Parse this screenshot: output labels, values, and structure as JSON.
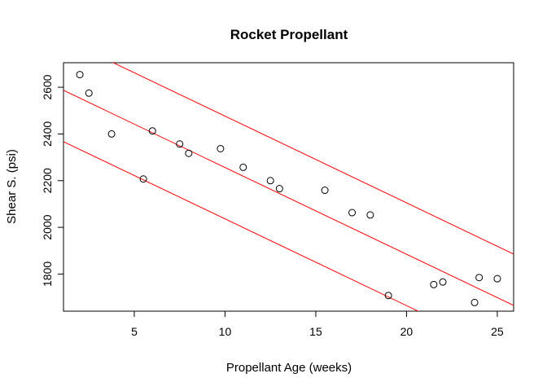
{
  "chart_data": {
    "type": "scatter",
    "title": "Rocket Propellant",
    "xlabel": "Propellant Age (weeks)",
    "ylabel": "Shear S. (psi)",
    "xlim": [
      1.1,
      25.9
    ],
    "ylim": [
      1641,
      2705
    ],
    "xticks": [
      5,
      10,
      15,
      20,
      25
    ],
    "yticks": [
      1800,
      2000,
      2200,
      2400,
      2600
    ],
    "grid": false,
    "legend": "none",
    "point_style": "open-circle",
    "point_color": "#000000",
    "line_color": "#ff0000",
    "points": [
      {
        "x": 2.0,
        "y": 2654
      },
      {
        "x": 2.5,
        "y": 2575
      },
      {
        "x": 3.75,
        "y": 2400
      },
      {
        "x": 5.5,
        "y": 2207
      },
      {
        "x": 6.0,
        "y": 2413
      },
      {
        "x": 7.5,
        "y": 2357
      },
      {
        "x": 8.0,
        "y": 2317
      },
      {
        "x": 9.75,
        "y": 2337
      },
      {
        "x": 11.0,
        "y": 2257
      },
      {
        "x": 12.5,
        "y": 2200
      },
      {
        "x": 13.0,
        "y": 2166
      },
      {
        "x": 15.5,
        "y": 2159
      },
      {
        "x": 17.0,
        "y": 2063
      },
      {
        "x": 18.0,
        "y": 2053
      },
      {
        "x": 19.0,
        "y": 1708
      },
      {
        "x": 21.5,
        "y": 1755
      },
      {
        "x": 22.0,
        "y": 1766
      },
      {
        "x": 23.75,
        "y": 1678
      },
      {
        "x": 24.0,
        "y": 1785
      },
      {
        "x": 25.0,
        "y": 1780
      }
    ],
    "lines": [
      {
        "intercept": 2627.8,
        "slope": -37.15
      },
      {
        "intercept": 2847.8,
        "slope": -37.15
      },
      {
        "intercept": 2407.8,
        "slope": -37.15
      }
    ]
  }
}
